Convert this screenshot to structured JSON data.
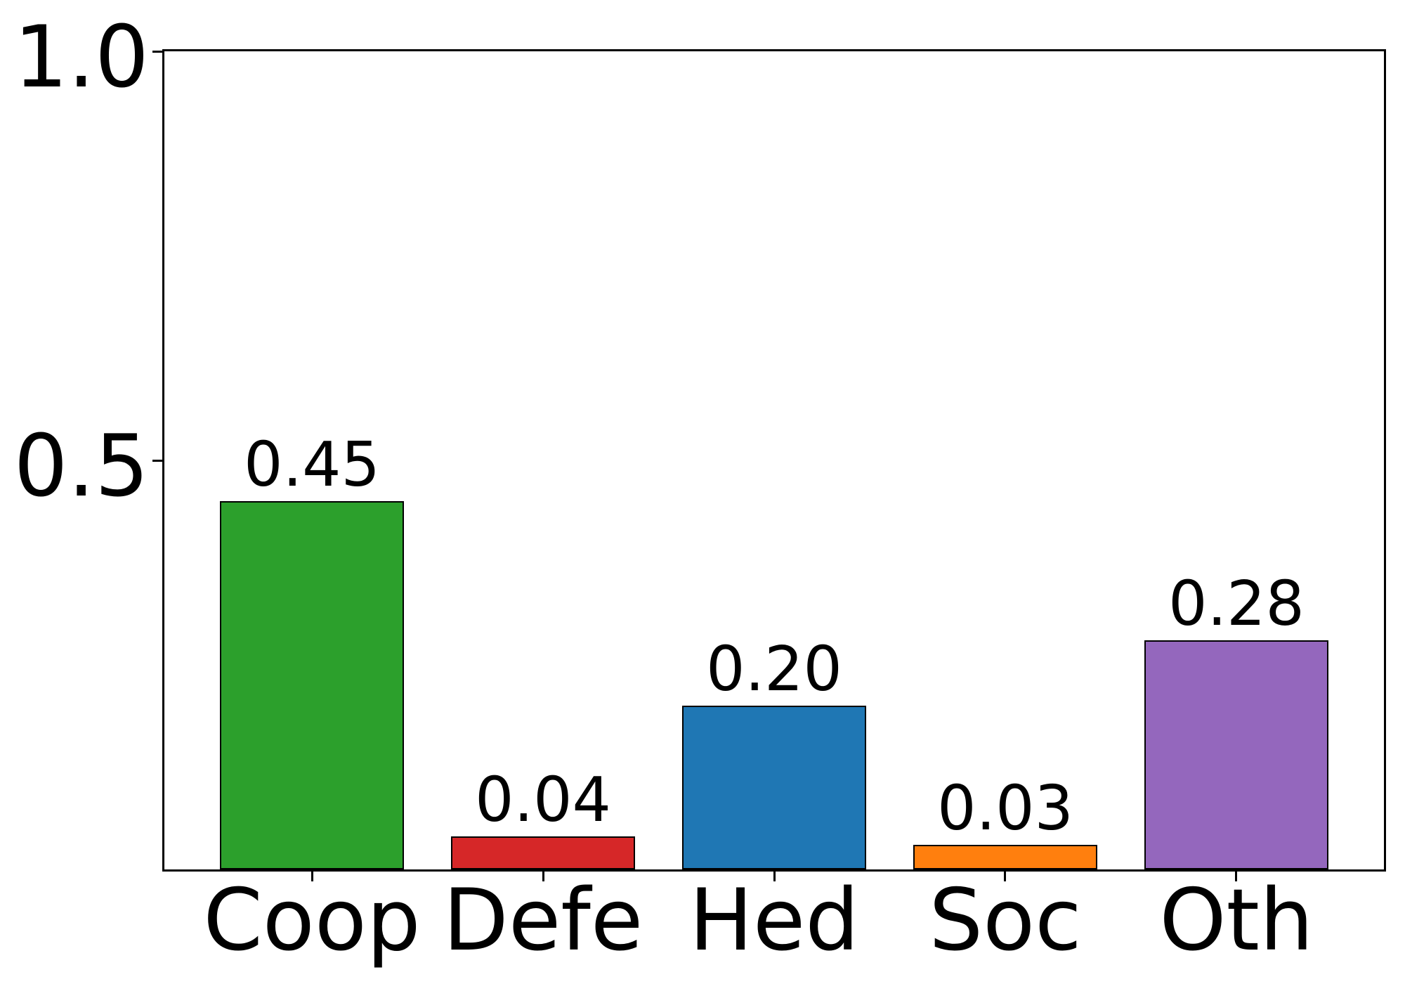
{
  "chart_data": {
    "type": "bar",
    "title": "",
    "xlabel": "",
    "ylabel": "",
    "categories": [
      "Coop",
      "Defe",
      "Hed",
      "Soc",
      "Oth"
    ],
    "values": [
      0.45,
      0.04,
      0.2,
      0.03,
      0.28
    ],
    "bar_value_labels": [
      "0.45",
      "0.04",
      "0.20",
      "0.03",
      "0.28"
    ],
    "bar_colors": [
      "#2ca02c",
      "#d62728",
      "#1f77b4",
      "#ff7f0e",
      "#9467bd"
    ],
    "bar_edge_color": "#000000",
    "ylim": [
      0,
      1.0
    ],
    "yticks": [
      {
        "value": 0.5,
        "label": "0.5"
      },
      {
        "value": 1.0,
        "label": "1.0"
      }
    ],
    "xticks_at_bar_centers": true,
    "grid": false,
    "legend_position": "none",
    "background_color": "#ffffff",
    "frame": "all-four-spines"
  }
}
